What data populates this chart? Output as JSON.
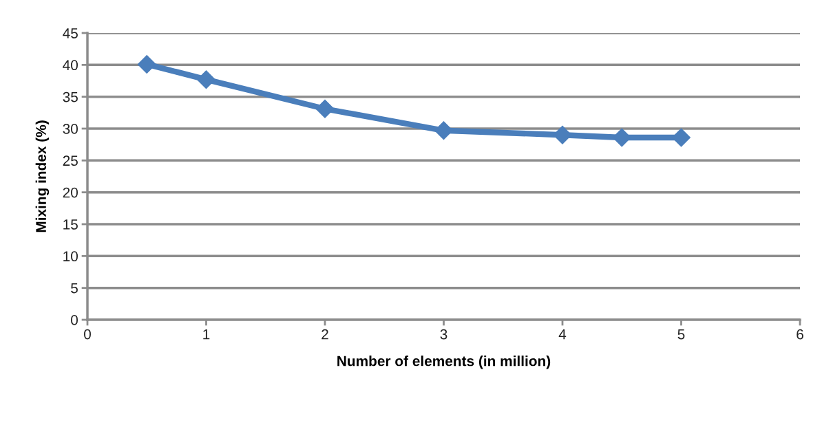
{
  "chart_data": {
    "type": "line",
    "xlabel": "Number of elements (in million)",
    "ylabel": "Mixing index (%)",
    "x": [
      0.5,
      1,
      2,
      3,
      4,
      4.5,
      5
    ],
    "series": [
      {
        "color": "#4a7ebb",
        "values": [
          40.1,
          37.7,
          33.1,
          29.7,
          29.0,
          28.6,
          28.6
        ]
      }
    ],
    "xlim": [
      0,
      6
    ],
    "xticks": [
      0,
      1,
      2,
      3,
      4,
      5,
      6
    ],
    "ylim": [
      0,
      45
    ],
    "yticks": [
      0,
      5,
      10,
      15,
      20,
      25,
      30,
      35,
      40,
      45
    ],
    "grid": "y",
    "marker": "diamond",
    "line_style": "solid",
    "legend": false
  }
}
